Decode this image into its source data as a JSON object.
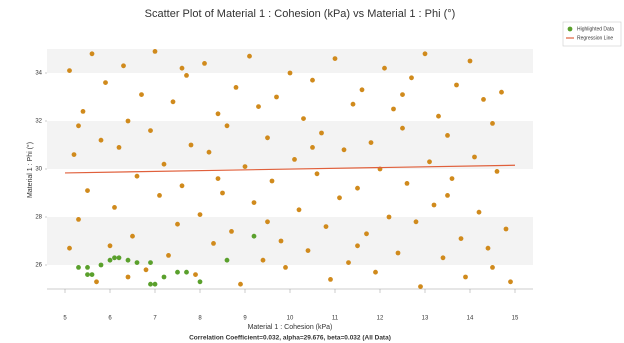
{
  "chart_data": {
    "type": "scatter",
    "title": "Scatter Plot of Material 1 : Cohesion (kPa) vs Material 1 : Phi (°)",
    "x_label": "Material 1 : Cohesion (kPa)",
    "y_label": "Material 1 : Phi (°)",
    "footer": "Correlation Coefficient=0.032, alpha=29.676, beta=0.032 (All Data)",
    "xlim": [
      4.6,
      15.4
    ],
    "ylim": [
      25,
      35
    ],
    "xticks": [
      5,
      6,
      7,
      8,
      9,
      10,
      11,
      12,
      13,
      14,
      15
    ],
    "yticks": [
      26,
      28,
      30,
      32,
      34
    ],
    "bands": true,
    "legend": "top-right",
    "series": [
      {
        "color": "#d08a1c",
        "x": [
          5.1,
          5.2,
          5.3,
          5.1,
          5.4,
          5.6,
          5.5,
          5.8,
          5.7,
          5.9,
          6.1,
          6.2,
          6.0,
          6.3,
          6.4,
          6.5,
          6.6,
          6.7,
          6.8,
          6.9,
          7.0,
          7.1,
          7.2,
          7.3,
          7.4,
          7.5,
          7.6,
          7.7,
          7.8,
          7.9,
          8.0,
          8.1,
          8.2,
          8.3,
          8.4,
          8.5,
          8.6,
          8.7,
          8.8,
          8.9,
          9.0,
          9.1,
          9.2,
          9.3,
          9.4,
          9.5,
          9.6,
          9.7,
          9.8,
          9.9,
          10.0,
          10.1,
          10.2,
          10.3,
          10.4,
          10.5,
          10.6,
          10.7,
          10.8,
          10.9,
          11.0,
          11.1,
          11.2,
          11.3,
          11.4,
          11.5,
          11.6,
          11.7,
          11.8,
          11.9,
          12.0,
          12.1,
          12.2,
          12.3,
          12.4,
          12.5,
          12.6,
          12.7,
          12.8,
          12.9,
          13.0,
          13.1,
          13.2,
          13.3,
          13.4,
          13.5,
          13.6,
          13.7,
          13.8,
          13.9,
          14.0,
          14.1,
          14.2,
          14.3,
          14.4,
          14.5,
          14.6,
          14.7,
          14.8,
          14.9,
          5.3,
          6.4,
          7.6,
          8.4,
          9.5,
          10.5,
          11.5,
          12.5,
          13.5,
          14.5
        ],
        "values": [
          34.1,
          30.6,
          27.9,
          26.7,
          32.4,
          34.8,
          29.1,
          31.2,
          25.3,
          33.6,
          28.4,
          30.9,
          26.8,
          34.3,
          32.0,
          27.2,
          29.7,
          33.1,
          25.8,
          31.6,
          34.9,
          28.9,
          30.2,
          26.4,
          32.8,
          27.7,
          29.3,
          33.9,
          31.0,
          25.6,
          28.1,
          34.4,
          30.7,
          26.9,
          32.3,
          29.0,
          31.8,
          27.4,
          33.4,
          25.2,
          30.1,
          34.7,
          28.6,
          32.6,
          26.2,
          31.3,
          29.5,
          33.0,
          27.0,
          25.9,
          34.0,
          30.4,
          28.3,
          32.1,
          26.6,
          33.7,
          29.8,
          31.5,
          27.6,
          25.4,
          34.6,
          28.8,
          30.8,
          26.1,
          32.7,
          29.2,
          33.3,
          27.3,
          31.1,
          25.7,
          30.0,
          34.2,
          28.0,
          32.5,
          26.5,
          31.7,
          29.4,
          33.8,
          27.8,
          25.1,
          34.8,
          30.3,
          28.5,
          32.2,
          26.3,
          31.4,
          29.6,
          33.5,
          27.1,
          25.5,
          34.5,
          30.5,
          28.2,
          32.9,
          26.7,
          31.9,
          29.9,
          33.2,
          27.5,
          25.3,
          31.8,
          25.5,
          34.2,
          29.6,
          27.8,
          30.9,
          26.8,
          33.1,
          28.9,
          25.9
        ]
      },
      {
        "name": "Highlighted Data",
        "color": "#5aa02c",
        "x": [
          5.3,
          5.5,
          5.6,
          5.8,
          6.0,
          6.1,
          6.2,
          6.4,
          6.6,
          6.9,
          7.0,
          7.2,
          7.5,
          7.7,
          8.0,
          8.6,
          9.2,
          5.5,
          6.9
        ],
        "values": [
          25.9,
          25.9,
          25.6,
          26.0,
          26.2,
          26.3,
          26.3,
          26.2,
          26.1,
          25.2,
          25.2,
          25.5,
          25.7,
          25.7,
          25.3,
          26.2,
          27.2,
          25.6,
          26.1
        ]
      },
      {
        "name": "Regression Line",
        "color": "#e0603c",
        "line": true,
        "x": [
          5,
          15
        ],
        "values": [
          29.836,
          30.156
        ]
      }
    ]
  }
}
